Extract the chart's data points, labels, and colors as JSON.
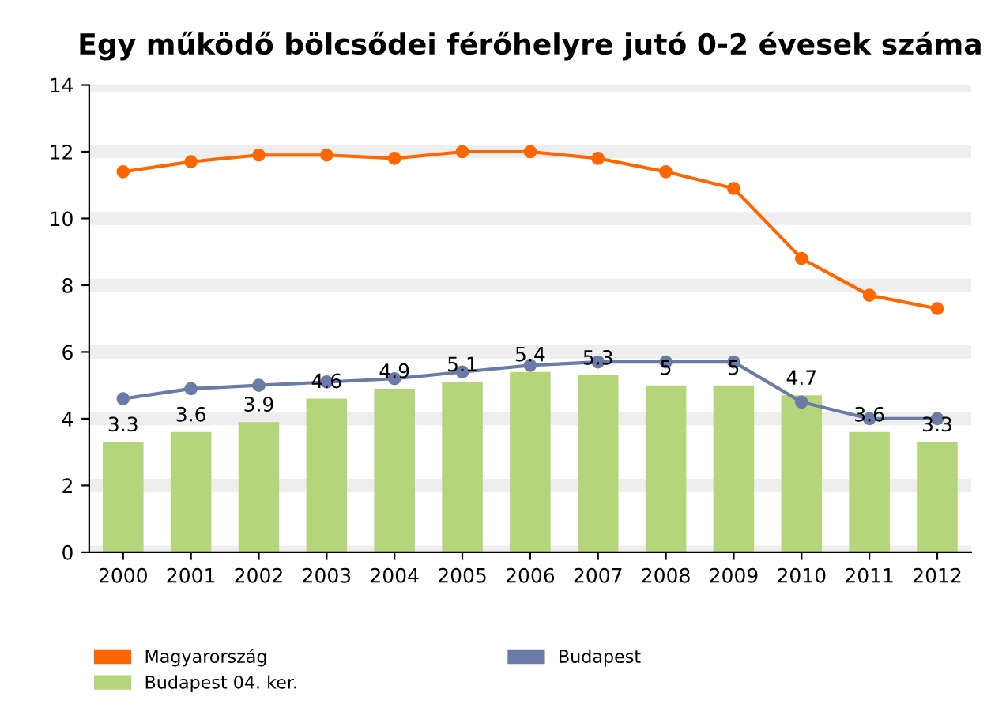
{
  "chart_data": {
    "type": "bar",
    "title": "Egy működő bölcsődei férőhelyre jutó 0-2 évesek száma",
    "categories": [
      "2000",
      "2001",
      "2002",
      "2003",
      "2004",
      "2005",
      "2006",
      "2007",
      "2008",
      "2009",
      "2010",
      "2011",
      "2012"
    ],
    "series": [
      {
        "name": "Magyarország",
        "type": "line",
        "color": "#ff6600",
        "values": [
          11.4,
          11.7,
          11.9,
          11.9,
          11.8,
          12.0,
          12.0,
          11.8,
          11.4,
          10.9,
          8.8,
          7.7,
          7.3
        ]
      },
      {
        "name": "Budapest",
        "type": "line",
        "color": "#6a7ba8",
        "values": [
          4.6,
          4.9,
          5.0,
          5.1,
          5.2,
          5.4,
          5.6,
          5.7,
          5.7,
          5.7,
          4.5,
          4.0,
          4.0
        ]
      },
      {
        "name": "Budapest 04. ker.",
        "color": "#b5d57a",
        "values": [
          3.3,
          3.6,
          3.9,
          4.6,
          4.9,
          5.1,
          5.4,
          5.3,
          5,
          5,
          4.7,
          3.6,
          3.3
        ],
        "value_labels": [
          "3.3",
          "3.6",
          "3.9",
          "4.6",
          "4.9",
          "5.1",
          "5.4",
          "5.3",
          "5",
          "5",
          "4.7",
          "3.6",
          "3.3"
        ]
      }
    ],
    "marker": "circle",
    "ylim": [
      0,
      14
    ],
    "yticks": [
      0,
      2,
      4,
      6,
      8,
      10,
      12,
      14
    ],
    "grid": "y",
    "legend": "bottom"
  }
}
